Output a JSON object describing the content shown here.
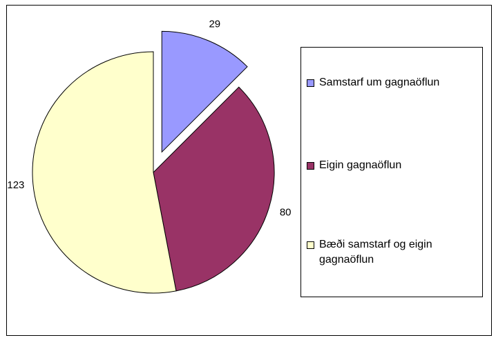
{
  "chart_data": {
    "type": "pie",
    "categories": [
      "Samstarf um gagnaöflun",
      "Eigin gagnaöflun",
      "Bæði samstarf og eigin gagnaöflun"
    ],
    "values": [
      29,
      80,
      123
    ],
    "colors": [
      "#9999ff",
      "#993366",
      "#ffffcc"
    ],
    "exploded": [
      true,
      false,
      false
    ],
    "legend": "right"
  }
}
